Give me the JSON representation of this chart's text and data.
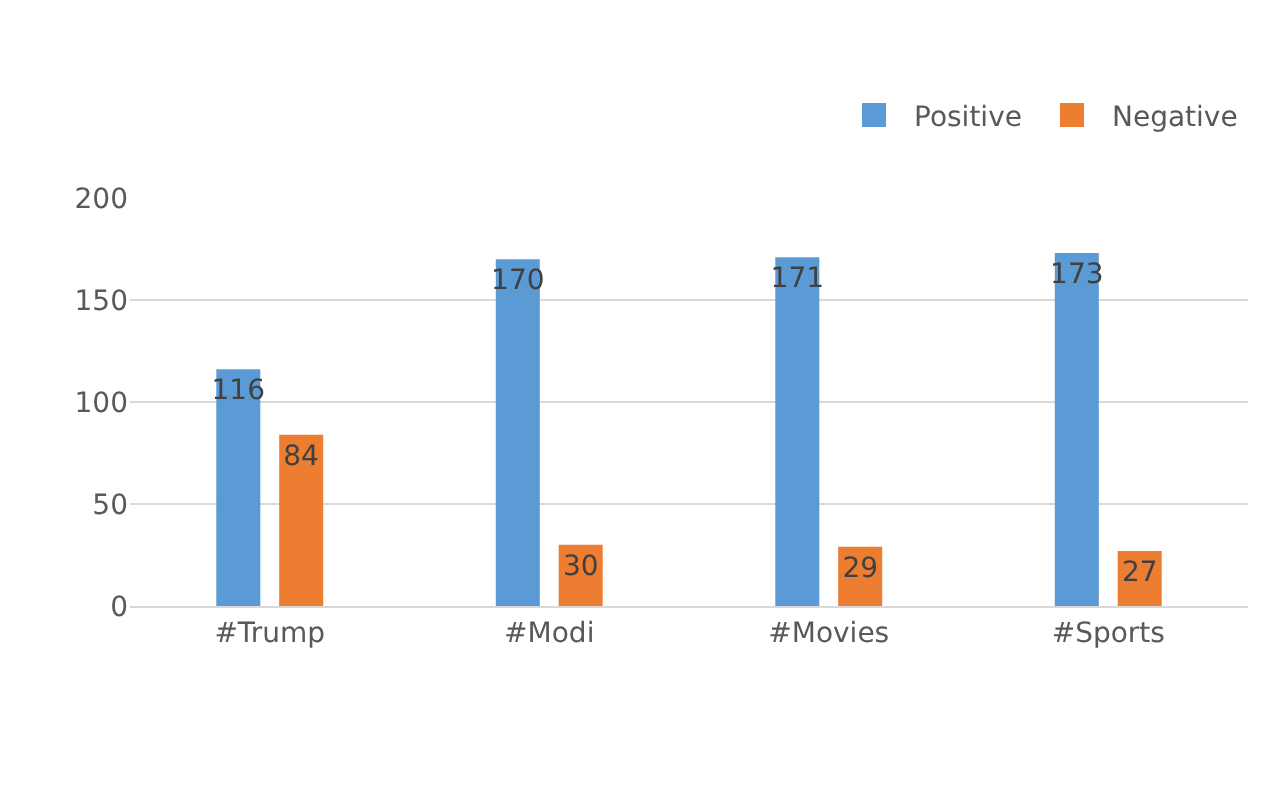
{
  "chart_data": {
    "type": "bar",
    "categories": [
      "#Trump",
      "#Modi",
      "#Movies",
      "#Sports"
    ],
    "series": [
      {
        "name": "Positive",
        "color": "#5b9bd5",
        "values": [
          116,
          170,
          171,
          173
        ]
      },
      {
        "name": "Negative",
        "color": "#ed7d31",
        "values": [
          84,
          30,
          29,
          27
        ]
      }
    ],
    "ylim": [
      0,
      200
    ],
    "yticks": [
      0,
      50,
      100,
      150,
      200
    ],
    "grid": "y",
    "legend": "top right",
    "data_labels": true
  }
}
